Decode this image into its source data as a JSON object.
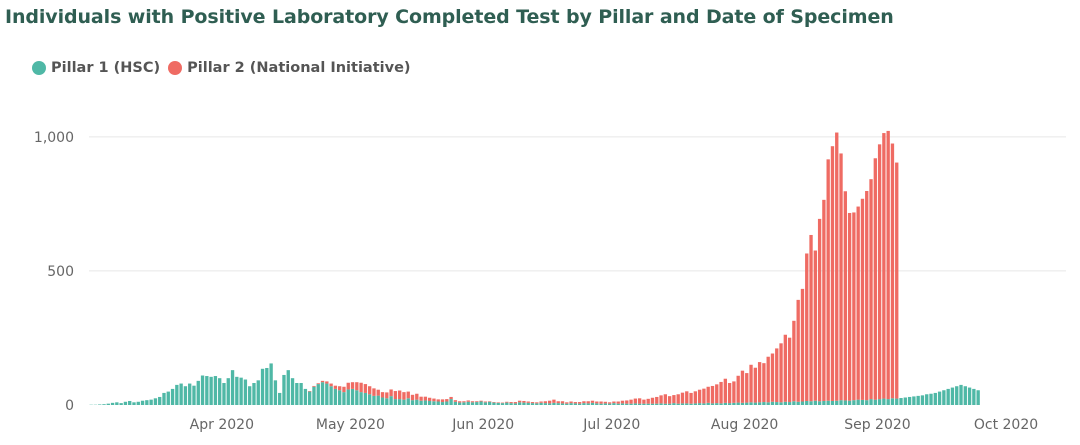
{
  "chart_data": {
    "type": "bar",
    "stacked": true,
    "title": "Individuals with Positive Laboratory Completed Test by Pillar and Date of Specimen",
    "x_start": "2020-03-01",
    "x_end": "2020-10-14",
    "x_ticks": [
      {
        "date": "2020-04-01",
        "label": "Apr 2020"
      },
      {
        "date": "2020-05-01",
        "label": "May 2020"
      },
      {
        "date": "2020-06-01",
        "label": "Jun 2020"
      },
      {
        "date": "2020-07-01",
        "label": "Jul 2020"
      },
      {
        "date": "2020-08-01",
        "label": "Aug 2020"
      },
      {
        "date": "2020-09-01",
        "label": "Sep 2020"
      },
      {
        "date": "2020-10-01",
        "label": "Oct 2020"
      }
    ],
    "y_ticks": [
      {
        "value": 0,
        "label": "0"
      },
      {
        "value": 500,
        "label": "500"
      },
      {
        "value": 1000,
        "label": "1,000"
      }
    ],
    "ylim": [
      0,
      1100
    ],
    "grid": true,
    "legend_position": "top-left",
    "series": [
      {
        "name": "Pillar 1 (HSC)",
        "color": "#4fb8a6",
        "values": [
          1,
          1,
          2,
          3,
          5,
          8,
          10,
          7,
          12,
          15,
          10,
          12,
          16,
          18,
          20,
          25,
          30,
          45,
          50,
          60,
          75,
          80,
          70,
          80,
          72,
          90,
          110,
          108,
          105,
          108,
          100,
          82,
          100,
          130,
          105,
          102,
          95,
          70,
          82,
          92,
          135,
          138,
          155,
          92,
          45,
          112,
          130,
          100,
          82,
          82,
          60,
          50,
          68,
          78,
          85,
          80,
          70,
          60,
          55,
          48,
          58,
          60,
          55,
          48,
          45,
          40,
          34,
          35,
          28,
          25,
          33,
          22,
          22,
          20,
          25,
          18,
          20,
          16,
          17,
          15,
          14,
          13,
          11,
          13,
          22,
          12,
          9,
          10,
          12,
          10,
          11,
          13,
          10,
          12,
          9,
          8,
          7,
          9,
          7,
          6,
          10,
          9,
          8,
          7,
          6,
          8,
          7,
          6,
          8,
          7,
          6,
          5,
          7,
          6,
          5,
          7,
          6,
          8,
          6,
          5,
          6,
          5,
          7,
          5,
          6,
          5,
          5,
          6,
          5,
          5,
          5,
          5,
          5,
          6,
          5,
          5,
          7,
          5,
          6,
          6,
          5,
          6,
          7,
          6,
          8,
          6,
          7,
          6,
          8,
          7,
          8,
          9,
          8,
          9,
          10,
          9,
          10,
          11,
          10,
          12,
          11,
          10,
          12,
          11,
          14,
          12,
          13,
          15,
          14,
          16,
          14,
          15,
          16,
          15,
          16,
          18,
          17,
          16,
          18,
          20,
          19,
          18,
          22,
          20,
          22,
          24,
          22,
          25,
          24,
          26,
          28,
          30,
          32,
          34,
          36,
          40,
          42,
          45,
          50,
          55,
          60,
          65,
          70,
          75,
          70,
          65,
          60,
          55
        ]
      },
      {
        "name": "Pillar 2 (National Initiative)",
        "color": "#ef6b63",
        "values": [
          0,
          0,
          0,
          0,
          0,
          0,
          0,
          0,
          0,
          0,
          0,
          0,
          0,
          0,
          0,
          0,
          0,
          0,
          0,
          0,
          0,
          0,
          0,
          0,
          0,
          0,
          0,
          0,
          0,
          0,
          0,
          0,
          0,
          0,
          0,
          0,
          0,
          0,
          0,
          0,
          0,
          0,
          0,
          0,
          0,
          0,
          0,
          0,
          0,
          0,
          0,
          2,
          3,
          3,
          5,
          8,
          10,
          12,
          15,
          20,
          25,
          25,
          30,
          35,
          33,
          30,
          28,
          22,
          20,
          22,
          25,
          30,
          32,
          28,
          25,
          20,
          22,
          15,
          14,
          12,
          10,
          8,
          10,
          9,
          8,
          6,
          5,
          4,
          5,
          4,
          3,
          3,
          3,
          2,
          2,
          2,
          2,
          3,
          4,
          5,
          6,
          6,
          5,
          4,
          4,
          5,
          7,
          10,
          12,
          7,
          8,
          5,
          6,
          5,
          6,
          7,
          8,
          8,
          7,
          8,
          6,
          5,
          6,
          8,
          10,
          12,
          15,
          18,
          20,
          15,
          18,
          22,
          25,
          30,
          35,
          28,
          30,
          35,
          40,
          45,
          40,
          45,
          50,
          55,
          60,
          65,
          70,
          80,
          90,
          75,
          80,
          100,
          120,
          110,
          140,
          130,
          150,
          145,
          170,
          180,
          200,
          220,
          250,
          240,
          300,
          380,
          420,
          550,
          620,
          560,
          680,
          750,
          900,
          950,
          1000,
          920,
          780,
          700,
          700,
          720,
          750,
          780,
          820,
          900,
          950,
          990,
          1000,
          950,
          880
        ]
      }
    ]
  }
}
